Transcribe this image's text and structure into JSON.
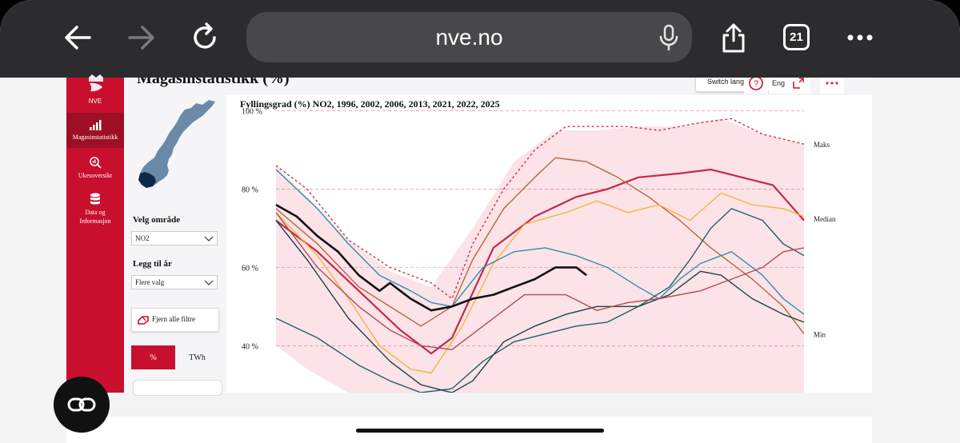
{
  "browser": {
    "url": "nve.no",
    "tab_count": "21"
  },
  "page": {
    "title": "Magasinstatistikk (%)",
    "switch_language": "Switch lang",
    "lang_short": "Eng"
  },
  "sidebar": {
    "logo_text": "NVE",
    "items": [
      {
        "label": "Magasinstatistikk",
        "icon": "bar-chart-icon"
      },
      {
        "label": "Ukesoversikt",
        "icon": "magnify-chart-icon"
      },
      {
        "label": "Data og Informasjon",
        "icon": "database-icon"
      }
    ]
  },
  "filters": {
    "area_label": "Velg område",
    "area_value": "NO2",
    "year_label": "Legg til år",
    "year_value": "Flere valg",
    "clear_label": "Fjern alle filtre",
    "unit_percent": "%",
    "unit_twh": "TWh"
  },
  "chart_data": {
    "type": "line",
    "title": "Fyllingsgrad (%) NO2, 1996, 2002, 2006, 2013, 2021, 2022, 2025",
    "xlabel": "",
    "ylabel": "",
    "ylim": [
      28,
      104
    ],
    "x_domain": [
      1,
      52
    ],
    "y_ticks": [
      {
        "value": 40,
        "label": "40 %"
      },
      {
        "value": 60,
        "label": "60 %"
      },
      {
        "value": 80,
        "label": "80 %"
      },
      {
        "value": 100,
        "label": "100 %"
      }
    ],
    "grid": "dashed horizontal",
    "band_labels": [
      {
        "label": "Maks",
        "value": 91.5
      },
      {
        "label": "Median",
        "value": 72.5
      },
      {
        "label": "Min",
        "value": 43
      }
    ],
    "band": {
      "x": [
        1,
        4,
        8,
        12,
        16,
        20,
        24,
        28,
        32,
        36,
        40,
        44,
        48,
        52
      ],
      "upper": [
        86,
        78,
        67,
        59,
        55,
        70,
        87,
        95,
        95,
        96,
        96,
        98,
        94,
        91.5
      ],
      "lower": [
        40,
        34,
        28,
        28,
        28,
        28,
        28,
        28,
        28,
        28,
        28,
        28,
        28,
        28
      ]
    },
    "series": [
      {
        "color": "#d42e4a",
        "dashed": true,
        "values": [
          [
            1,
            86
          ],
          [
            4,
            80
          ],
          [
            8,
            67
          ],
          [
            12,
            60
          ],
          [
            16,
            56
          ],
          [
            18,
            52
          ],
          [
            20,
            66
          ],
          [
            23,
            80
          ],
          [
            26,
            90
          ],
          [
            29,
            96
          ],
          [
            32,
            96
          ],
          [
            35,
            96
          ],
          [
            38,
            95
          ],
          [
            42,
            97
          ],
          [
            45,
            98
          ],
          [
            48,
            94
          ],
          [
            52,
            91.5
          ]
        ]
      },
      {
        "color": "#c72848",
        "width": 2.2,
        "values": [
          [
            1,
            72
          ],
          [
            5,
            64
          ],
          [
            9,
            54
          ],
          [
            13,
            44
          ],
          [
            16,
            38
          ],
          [
            18,
            42
          ],
          [
            22,
            65
          ],
          [
            26,
            73
          ],
          [
            30,
            78
          ],
          [
            33,
            80
          ],
          [
            36,
            83
          ],
          [
            40,
            84
          ],
          [
            43,
            85
          ],
          [
            46,
            83
          ],
          [
            49,
            81
          ],
          [
            52,
            72
          ]
        ]
      },
      {
        "color": "#b8653a",
        "values": [
          [
            1,
            75
          ],
          [
            5,
            66
          ],
          [
            9,
            55
          ],
          [
            12,
            50
          ],
          [
            15,
            45
          ],
          [
            18,
            50
          ],
          [
            20,
            62
          ],
          [
            23,
            75
          ],
          [
            26,
            83
          ],
          [
            28,
            88
          ],
          [
            31,
            87
          ],
          [
            34,
            83
          ],
          [
            37,
            78
          ],
          [
            40,
            72
          ],
          [
            43,
            65
          ],
          [
            47,
            57
          ],
          [
            50,
            50
          ],
          [
            52,
            43
          ]
        ]
      },
      {
        "color": "#f0b73c",
        "values": [
          [
            1,
            74
          ],
          [
            5,
            63
          ],
          [
            8,
            52
          ],
          [
            11,
            40
          ],
          [
            14,
            34
          ],
          [
            16,
            33
          ],
          [
            19,
            45
          ],
          [
            22,
            61
          ],
          [
            25,
            71
          ],
          [
            29,
            74
          ],
          [
            32,
            77
          ],
          [
            35,
            74
          ],
          [
            38,
            76
          ],
          [
            41,
            72
          ],
          [
            44,
            79
          ],
          [
            47,
            76
          ],
          [
            50,
            75
          ],
          [
            52,
            73
          ]
        ]
      },
      {
        "color": "#2a93a8",
        "values": [
          [
            1,
            85
          ],
          [
            5,
            75
          ],
          [
            8,
            66
          ],
          [
            11,
            58
          ],
          [
            14,
            54
          ],
          [
            16,
            51
          ],
          [
            18,
            50
          ],
          [
            21,
            60
          ],
          [
            24,
            64
          ],
          [
            27,
            65
          ],
          [
            30,
            63
          ],
          [
            33,
            60
          ],
          [
            36,
            55
          ],
          [
            38,
            52
          ],
          [
            40,
            57
          ],
          [
            42,
            61
          ],
          [
            45,
            64
          ],
          [
            48,
            58
          ],
          [
            50,
            52
          ],
          [
            52,
            48
          ]
        ]
      },
      {
        "color": "#1f5f6a",
        "values": [
          [
            1,
            47
          ],
          [
            5,
            42
          ],
          [
            9,
            35
          ],
          [
            12,
            31
          ],
          [
            15,
            28
          ],
          [
            18,
            29
          ],
          [
            21,
            36
          ],
          [
            24,
            41
          ],
          [
            27,
            43
          ],
          [
            30,
            45
          ],
          [
            33,
            46
          ],
          [
            36,
            50
          ],
          [
            39,
            55
          ],
          [
            41,
            62
          ],
          [
            43,
            70
          ],
          [
            45,
            75
          ],
          [
            48,
            72
          ],
          [
            50,
            66
          ],
          [
            52,
            63
          ]
        ]
      },
      {
        "color": "#17434a",
        "values": [
          [
            1,
            72
          ],
          [
            4,
            62
          ],
          [
            8,
            47
          ],
          [
            12,
            36
          ],
          [
            15,
            30
          ],
          [
            18,
            28
          ],
          [
            20,
            31
          ],
          [
            23,
            41
          ],
          [
            26,
            45
          ],
          [
            29,
            48
          ],
          [
            32,
            50
          ],
          [
            36,
            50
          ],
          [
            39,
            53
          ],
          [
            42,
            59
          ],
          [
            44,
            58
          ],
          [
            47,
            52
          ],
          [
            50,
            48
          ],
          [
            52,
            46
          ]
        ]
      },
      {
        "color": "#b74a55",
        "values": [
          [
            1,
            74
          ],
          [
            5,
            60
          ],
          [
            9,
            50
          ],
          [
            12,
            44
          ],
          [
            15,
            40
          ],
          [
            18,
            39
          ],
          [
            21,
            45
          ],
          [
            25,
            53
          ],
          [
            29,
            53
          ],
          [
            32,
            49
          ],
          [
            35,
            51
          ],
          [
            38,
            52
          ],
          [
            42,
            54
          ],
          [
            45,
            57
          ],
          [
            48,
            60
          ],
          [
            50,
            64
          ],
          [
            52,
            65
          ]
        ]
      },
      {
        "color": "#111111",
        "width": 2.6,
        "values": [
          [
            1,
            76
          ],
          [
            3,
            73
          ],
          [
            5,
            68
          ],
          [
            7,
            64
          ],
          [
            9,
            58
          ],
          [
            11,
            54
          ],
          [
            12,
            56
          ],
          [
            14,
            52
          ],
          [
            16,
            49
          ],
          [
            18,
            50
          ],
          [
            20,
            52
          ],
          [
            22,
            53
          ],
          [
            24,
            55
          ],
          [
            26,
            57
          ],
          [
            28,
            60
          ],
          [
            30,
            60
          ],
          [
            31,
            58
          ]
        ]
      }
    ]
  }
}
